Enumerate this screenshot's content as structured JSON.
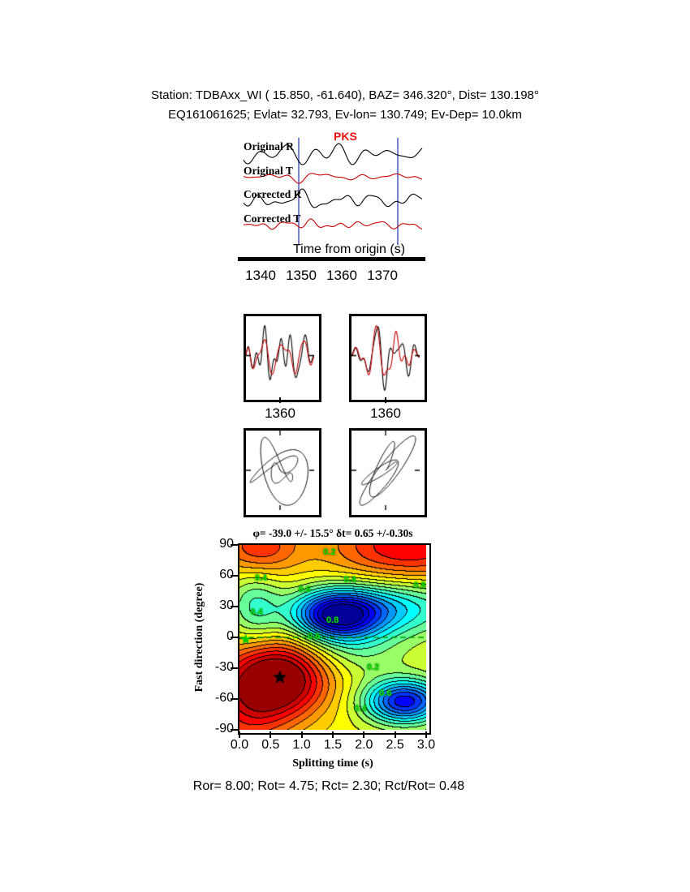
{
  "header": {
    "line1": "Station: TDBAxx_WI (  15.850,  -61.640), BAZ=  346.320°, Dist=  130.198°",
    "line2": "EQ161061625; Evlat=  32.793, Ev-lon= 130.749; Ev-Dep= 10.0km"
  },
  "traces": {
    "phase": "PKS",
    "phase_color": "#ee1111",
    "labels": [
      "Original R",
      "Original T",
      "Corrected R",
      "Corrected T"
    ],
    "colors": [
      "#000000",
      "#cc0000",
      "#000000",
      "#cc0000"
    ],
    "axis_label": "Time from origin (s)",
    "ticks": [
      "1340",
      "1350",
      "1360",
      "1370"
    ],
    "window_color": "#5566cc"
  },
  "windows": {
    "ticks": [
      "1360",
      "1360"
    ]
  },
  "chart_data": {
    "type": "heatmap",
    "title": "φ= -39.0 +/- 15.5° δt= 0.65 +/-0.30s",
    "xlabel": "Splitting time (s)",
    "ylabel": "Fast direction (degree)",
    "xlim": [
      0.0,
      3.0
    ],
    "ylim": [
      -90,
      90
    ],
    "xticks": [
      "0.0",
      "0.5",
      "1.0",
      "1.5",
      "2.0",
      "2.5",
      "3.0"
    ],
    "yticks": [
      "90",
      "60",
      "30",
      "0",
      "-30",
      "-60",
      "-90"
    ],
    "grid": false,
    "colormap": "reversed-jet (red = low misfit, blue = high)",
    "level_step": 0.05,
    "best_fit": {
      "label": "best splitting solution (black star)",
      "phi_deg": -39.0,
      "phi_err_deg": 15.5,
      "dt_s": 0.65,
      "dt_err_s": 0.3,
      "x": 0.65,
      "y": -39,
      "marker": "black-star"
    },
    "null_marker": {
      "x": 0.1,
      "y": -2,
      "marker": "green-star"
    },
    "zero_phi_line": {
      "y": 0,
      "style": "dashed",
      "color": "#009900"
    },
    "contour_labels": [
      {
        "v": "0.2",
        "x": 1.45,
        "y": 82
      },
      {
        "v": "0.4",
        "x": 0.35,
        "y": 57
      },
      {
        "v": "0.4",
        "x": 1.78,
        "y": 55
      },
      {
        "v": "0.6",
        "x": 1.05,
        "y": 46
      },
      {
        "v": "0.8",
        "x": 2.9,
        "y": 50
      },
      {
        "v": "0.4",
        "x": 0.28,
        "y": 24
      },
      {
        "v": "0.8",
        "x": 1.5,
        "y": 16
      },
      {
        "v": "0.6",
        "x": 1.2,
        "y": 0
      },
      {
        "v": "0.2",
        "x": 2.15,
        "y": -30
      },
      {
        "v": "0.6",
        "x": 2.35,
        "y": -55
      },
      {
        "v": "0.4",
        "x": 1.95,
        "y": -70
      }
    ],
    "approx_field": {
      "base": 0.38,
      "blobs": [
        {
          "cx": 0.65,
          "cy": -40,
          "sx": 0.55,
          "sy": 26,
          "a": -0.42
        },
        {
          "cx": 0.1,
          "cy": -70,
          "sx": 0.5,
          "sy": 35,
          "a": -0.18
        },
        {
          "cx": 1.55,
          "cy": 22,
          "sx": 0.5,
          "sy": 17,
          "a": 0.55
        },
        {
          "cx": 2.5,
          "cy": 30,
          "sx": 0.8,
          "sy": 20,
          "a": 0.25
        },
        {
          "cx": 2.65,
          "cy": -62,
          "sx": 0.45,
          "sy": 15,
          "a": 0.5
        },
        {
          "cx": 2.7,
          "cy": 88,
          "sx": 0.9,
          "sy": 25,
          "a": -0.28
        },
        {
          "cx": 0.3,
          "cy": 88,
          "sx": 0.45,
          "sy": 20,
          "a": -0.22
        },
        {
          "cx": 0.25,
          "cy": 30,
          "sx": 0.3,
          "sy": 25,
          "a": 0.18
        },
        {
          "cx": 1.9,
          "cy": -15,
          "sx": 0.6,
          "sy": 18,
          "a": 0.1
        }
      ]
    }
  },
  "footer": {
    "text": "Ror= 8.00; Rot= 4.75; Rct= 2.30; Rct/Rot= 0.48"
  }
}
